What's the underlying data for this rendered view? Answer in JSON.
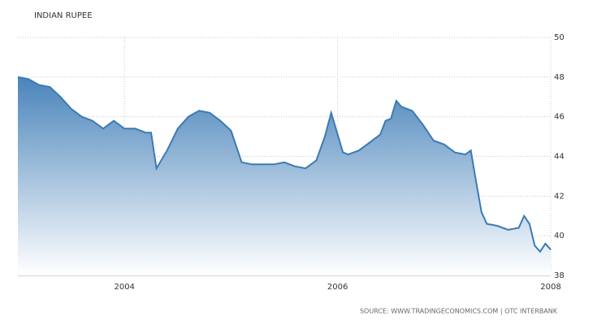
{
  "chart_data": {
    "type": "area",
    "title": "INDIAN RUPEE",
    "source": "SOURCE: WWW.TRADINGECONOMICS.COM | OTC INTERBANK",
    "x": [
      2003.0,
      2003.1,
      2003.2,
      2003.3,
      2003.4,
      2003.5,
      2003.6,
      2003.7,
      2003.8,
      2003.9,
      2004.0,
      2004.1,
      2004.2,
      2004.25,
      2004.3,
      2004.4,
      2004.5,
      2004.6,
      2004.7,
      2004.8,
      2004.9,
      2005.0,
      2005.1,
      2005.2,
      2005.3,
      2005.4,
      2005.5,
      2005.6,
      2005.7,
      2005.8,
      2005.88,
      2005.94,
      2006.05,
      2006.1,
      2006.2,
      2006.3,
      2006.4,
      2006.45,
      2006.5,
      2006.55,
      2006.6,
      2006.7,
      2006.8,
      2006.9,
      2007.0,
      2007.1,
      2007.2,
      2007.25,
      2007.3,
      2007.35,
      2007.4,
      2007.5,
      2007.6,
      2007.7,
      2007.75,
      2007.8,
      2007.85,
      2007.9,
      2007.95,
      2008.0
    ],
    "values": [
      48.0,
      47.9,
      47.6,
      47.5,
      47.0,
      46.4,
      46.0,
      45.8,
      45.4,
      45.8,
      45.4,
      45.4,
      45.2,
      45.2,
      43.4,
      44.3,
      45.4,
      46.0,
      46.3,
      46.2,
      45.8,
      45.3,
      43.7,
      43.6,
      43.6,
      43.6,
      43.7,
      43.5,
      43.4,
      43.8,
      45.0,
      46.2,
      44.2,
      44.1,
      44.3,
      44.7,
      45.1,
      45.8,
      45.9,
      46.8,
      46.5,
      46.3,
      45.6,
      44.8,
      44.6,
      44.2,
      44.1,
      44.3,
      42.7,
      41.2,
      40.6,
      40.5,
      40.3,
      40.4,
      41.0,
      40.6,
      39.5,
      39.2,
      39.6,
      39.3
    ],
    "color": "#3c7ab3",
    "xlim": [
      2003,
      2008
    ],
    "xticks": [
      2004,
      2006,
      2008
    ],
    "ylim": [
      38,
      50
    ],
    "yticks": [
      38,
      40,
      42,
      44,
      46,
      48,
      50
    ],
    "grid": true
  }
}
